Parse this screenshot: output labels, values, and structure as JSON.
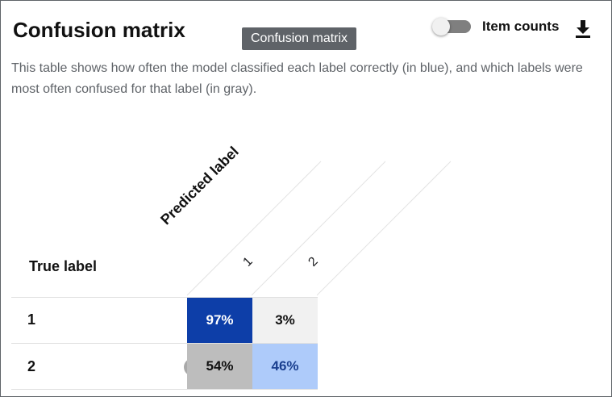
{
  "header": {
    "title": "Confusion matrix",
    "tooltip": "Confusion matrix",
    "toggle_label": "Item counts"
  },
  "description": "This table shows how often the model classified each label correctly (in blue), and which labels were most often confused for that label (in gray).",
  "matrix": {
    "column_axis_label": "Predicted label",
    "row_axis_label": "True label",
    "columns": [
      "1",
      "2"
    ],
    "rows": [
      {
        "label": "1",
        "cells": [
          "97%",
          "3%"
        ]
      },
      {
        "label": "2",
        "cells": [
          "54%",
          "46%"
        ]
      }
    ]
  },
  "colors": {
    "correct_strong": "#0d3ea8",
    "correct_light": "#aecbfa",
    "confused_strong": "#bdbdbd",
    "confused_light": "#f1f1f1"
  },
  "icons": {
    "download": "download-icon",
    "toggle": "toggle-switch"
  }
}
